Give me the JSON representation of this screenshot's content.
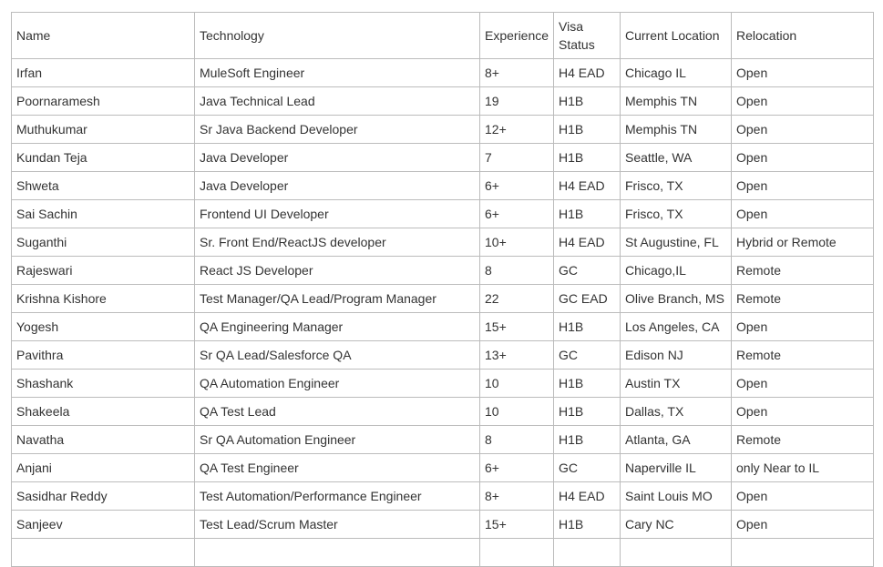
{
  "table": {
    "headers": [
      "Name",
      "Technology",
      "Experience",
      "Visa Status",
      "Current Location",
      "Relocation"
    ],
    "rows": [
      [
        "Irfan",
        "MuleSoft Engineer",
        "8+",
        "H4 EAD",
        "Chicago IL",
        "Open"
      ],
      [
        "Poornaramesh",
        "Java Technical Lead",
        "19",
        "H1B",
        "Memphis TN",
        "Open"
      ],
      [
        "Muthukumar",
        "Sr Java Backend Developer",
        "12+",
        "H1B",
        "Memphis TN",
        "Open"
      ],
      [
        "Kundan Teja",
        "Java Developer",
        "7",
        "H1B",
        "Seattle, WA",
        "Open"
      ],
      [
        "Shweta",
        "Java Developer",
        "6+",
        "H4 EAD",
        "Frisco, TX",
        "Open"
      ],
      [
        "Sai Sachin",
        "Frontend UI Developer",
        "6+",
        "H1B",
        "Frisco, TX",
        "Open"
      ],
      [
        "Suganthi",
        "Sr. Front End/ReactJS developer",
        "10+",
        "H4 EAD",
        "St Augustine, FL",
        "Hybrid or Remote"
      ],
      [
        "Rajeswari",
        "React JS Developer",
        "8",
        "GC",
        "Chicago,IL",
        "Remote"
      ],
      [
        "Krishna Kishore",
        "Test Manager/QA Lead/Program Manager",
        "22",
        "GC EAD",
        "Olive Branch, MS",
        "Remote"
      ],
      [
        "Yogesh",
        "QA Engineering Manager",
        "15+",
        "H1B",
        "Los Angeles, CA",
        "Open"
      ],
      [
        "Pavithra",
        "Sr QA Lead/Salesforce QA",
        "13+",
        "GC",
        "Edison NJ",
        "Remote"
      ],
      [
        "Shashank",
        "QA Automation Engineer",
        "10",
        "H1B",
        "Austin TX",
        "Open"
      ],
      [
        "Shakeela",
        "QA Test Lead",
        "10",
        "H1B",
        "Dallas, TX",
        "Open"
      ],
      [
        "Navatha",
        "Sr QA Automation Engineer",
        "8",
        "H1B",
        "Atlanta, GA",
        "Remote"
      ],
      [
        "Anjani",
        "QA Test Engineer",
        "6+",
        "GC",
        "Naperville IL",
        "only Near to IL"
      ],
      [
        "Sasidhar Reddy",
        "Test Automation/Performance Engineer",
        "8+",
        "H4 EAD",
        "Saint Louis MO",
        "Open"
      ],
      [
        "Sanjeev",
        "Test Lead/Scrum Master",
        "15+",
        "H1B",
        "Cary NC",
        "Open"
      ],
      [
        "",
        "",
        "",
        "",
        "",
        ""
      ]
    ]
  }
}
